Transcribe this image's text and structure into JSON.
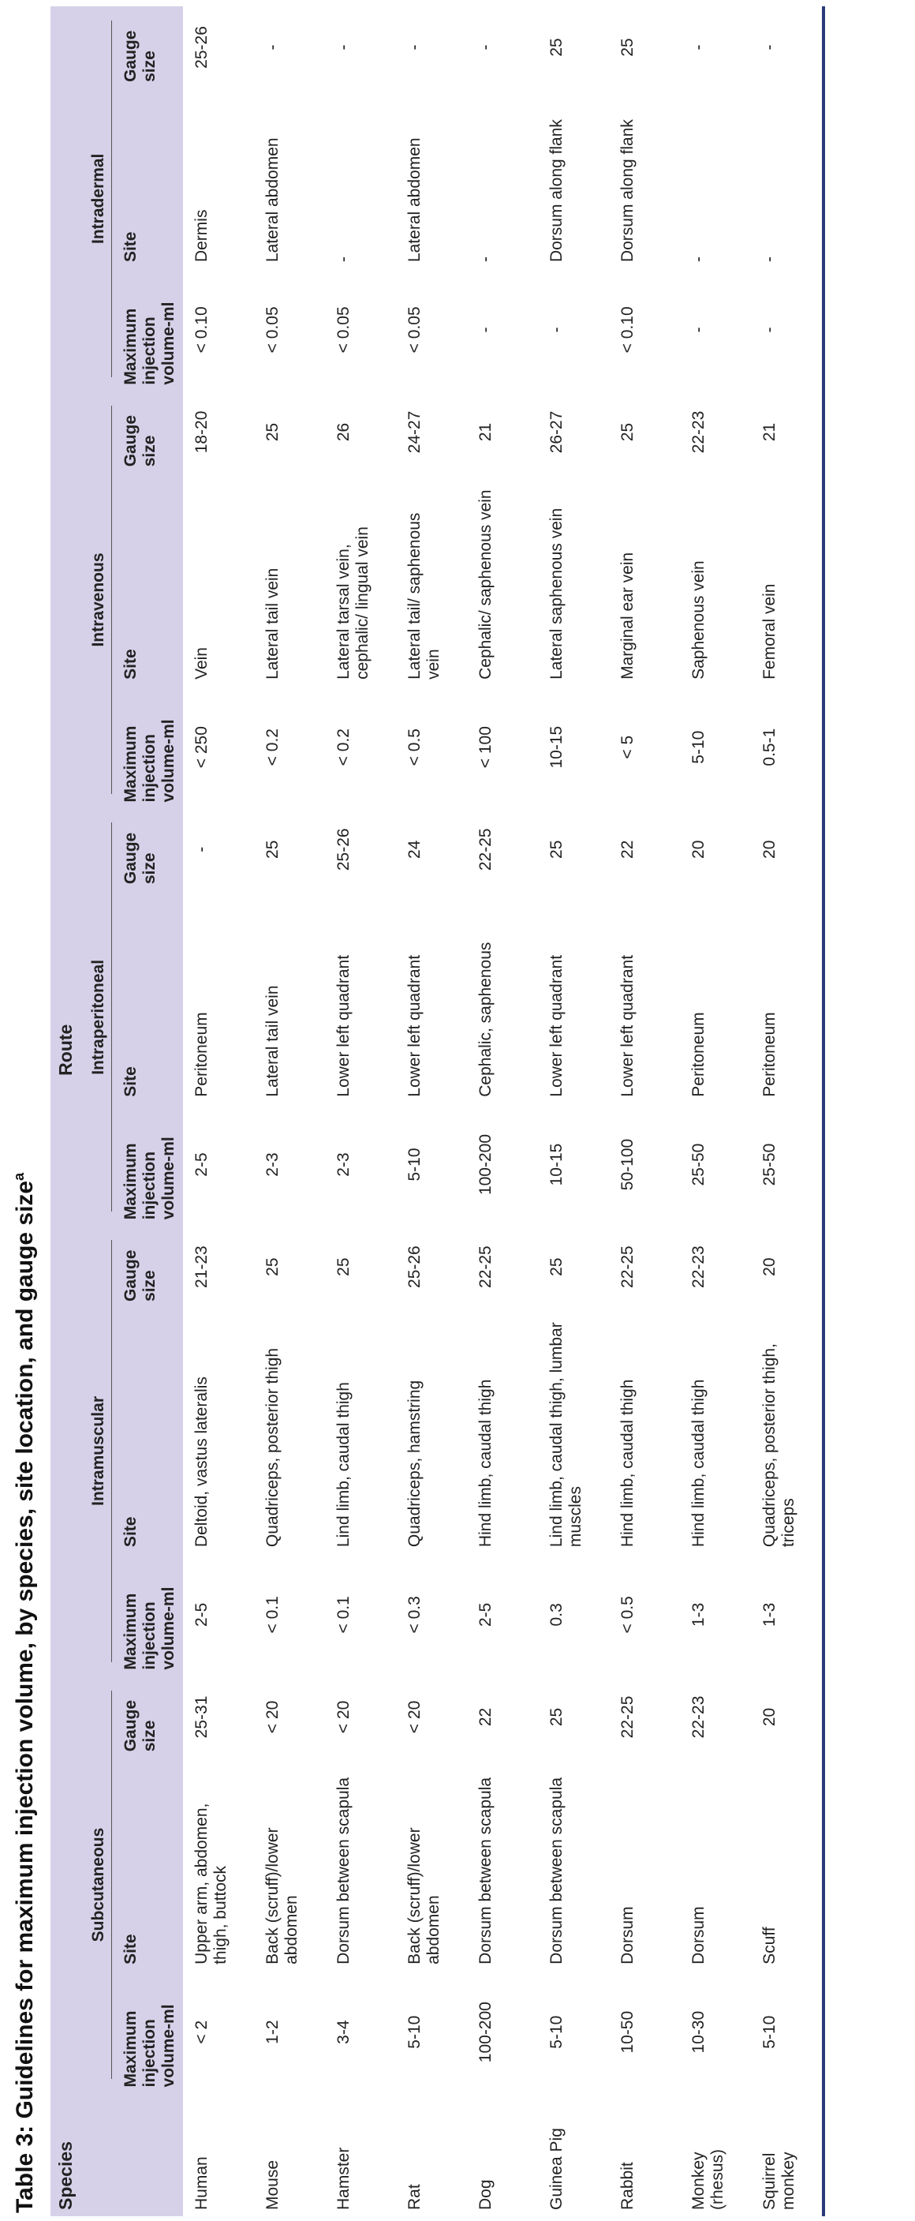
{
  "title": "Table 3: Guidelines for maximum injection volume, by species, site location, and gauge size",
  "title_note": "a",
  "header": {
    "species": "Species",
    "route": "Route",
    "routes": [
      {
        "name": "Subcutaneous",
        "columns": [
          "Maximum injection volume-ml",
          "Site",
          "Gauge size"
        ]
      },
      {
        "name": "Intramuscular",
        "columns": [
          "Maximum injection volume-ml",
          "Site",
          "Gauge size"
        ]
      },
      {
        "name": "Intraperitoneal",
        "columns": [
          "Maximum injection volume-ml",
          "Site",
          "Gauge size"
        ]
      },
      {
        "name": "Intravenous",
        "columns": [
          "Maximum injection volume-ml",
          "Site",
          "Gauge size"
        ]
      },
      {
        "name": "Intradermal",
        "columns": [
          "Maximum injection volume-ml",
          "Site",
          "Gauge size"
        ]
      }
    ]
  },
  "rows": [
    {
      "species": "Human",
      "cells": [
        "< 2",
        "Upper arm, abdomen, thigh, buttock",
        "25-31",
        "2-5",
        "Deltoid, vastus lateralis",
        "21-23",
        "2-5",
        "Peritoneum",
        "-",
        "< 250",
        "Vein",
        "18-20",
        "< 0.10",
        "Dermis",
        "25-26"
      ]
    },
    {
      "species": "Mouse",
      "cells": [
        "1-2",
        "Back (scruff)/lower abdomen",
        "< 20",
        "< 0.1",
        "Quadriceps, posterior thigh",
        "25",
        "2-3",
        "Lateral tail vein",
        "25",
        "< 0.2",
        "Lateral tail vein",
        "25",
        "< 0.05",
        "Lateral abdomen",
        "-"
      ]
    },
    {
      "species": "Hamster",
      "cells": [
        "3-4",
        "Dorsum between scapula",
        "< 20",
        "< 0.1",
        "Lind limb, caudal thigh",
        "25",
        "2-3",
        "Lower left quadrant",
        "25-26",
        "< 0.2",
        "Lateral tarsal vein, cephalic/ lingual vein",
        "26",
        "< 0.05",
        "-",
        "-"
      ]
    },
    {
      "species": "Rat",
      "cells": [
        "5-10",
        "Back (scruff)/lower abdomen",
        "< 20",
        "< 0.3",
        "Quadriceps, hamstring",
        "25-26",
        "5-10",
        "Lower left quadrant",
        "24",
        "< 0.5",
        "Lateral tail/ saphenous vein",
        "24-27",
        "< 0.05",
        "Lateral abdomen",
        "-"
      ]
    },
    {
      "species": "Dog",
      "cells": [
        "100-200",
        "Dorsum between scapula",
        "22",
        "2-5",
        "Hind limb, caudal thigh",
        "22-25",
        "100-200",
        "Cephalic, saphenous",
        "22-25",
        "< 100",
        "Cephalic/ saphenous vein",
        "21",
        "-",
        "-",
        "-"
      ]
    },
    {
      "species": "Guinea Pig",
      "cells": [
        "5-10",
        "Dorsum between scapula",
        "25",
        "0.3",
        "Lind limb, caudal thigh, lumbar muscles",
        "25",
        "10-15",
        "Lower left quadrant",
        "25",
        "10-15",
        "Lateral saphenous vein",
        "26-27",
        "-",
        "Dorsum along flank",
        "25"
      ]
    },
    {
      "species": "Rabbit",
      "cells": [
        "10-50",
        "Dorsum",
        "22-25",
        "< 0.5",
        "Hind limb, caudal thigh",
        "22-25",
        "50-100",
        "Lower left quadrant",
        "22",
        "< 5",
        "Marginal ear vein",
        "25",
        "< 0.10",
        "Dorsum along flank",
        "25"
      ]
    },
    {
      "species": "Monkey (rhesus)",
      "cells": [
        "10-30",
        "Dorsum",
        "22-23",
        "1-3",
        "Hind limb, caudal thigh",
        "22-23",
        "25-50",
        "Peritoneum",
        "20",
        "5-10",
        "Saphenous vein",
        "22-23",
        "-",
        "-",
        "-"
      ]
    },
    {
      "species": "Squirrel monkey",
      "cells": [
        "5-10",
        "Scuff",
        "20",
        "1-3",
        "Quadriceps, posterior thigh, triceps",
        "20",
        "25-50",
        "Peritoneum",
        "20",
        "0.5-1",
        "Femoral vein",
        "21",
        "-",
        "-",
        "-"
      ]
    }
  ]
}
